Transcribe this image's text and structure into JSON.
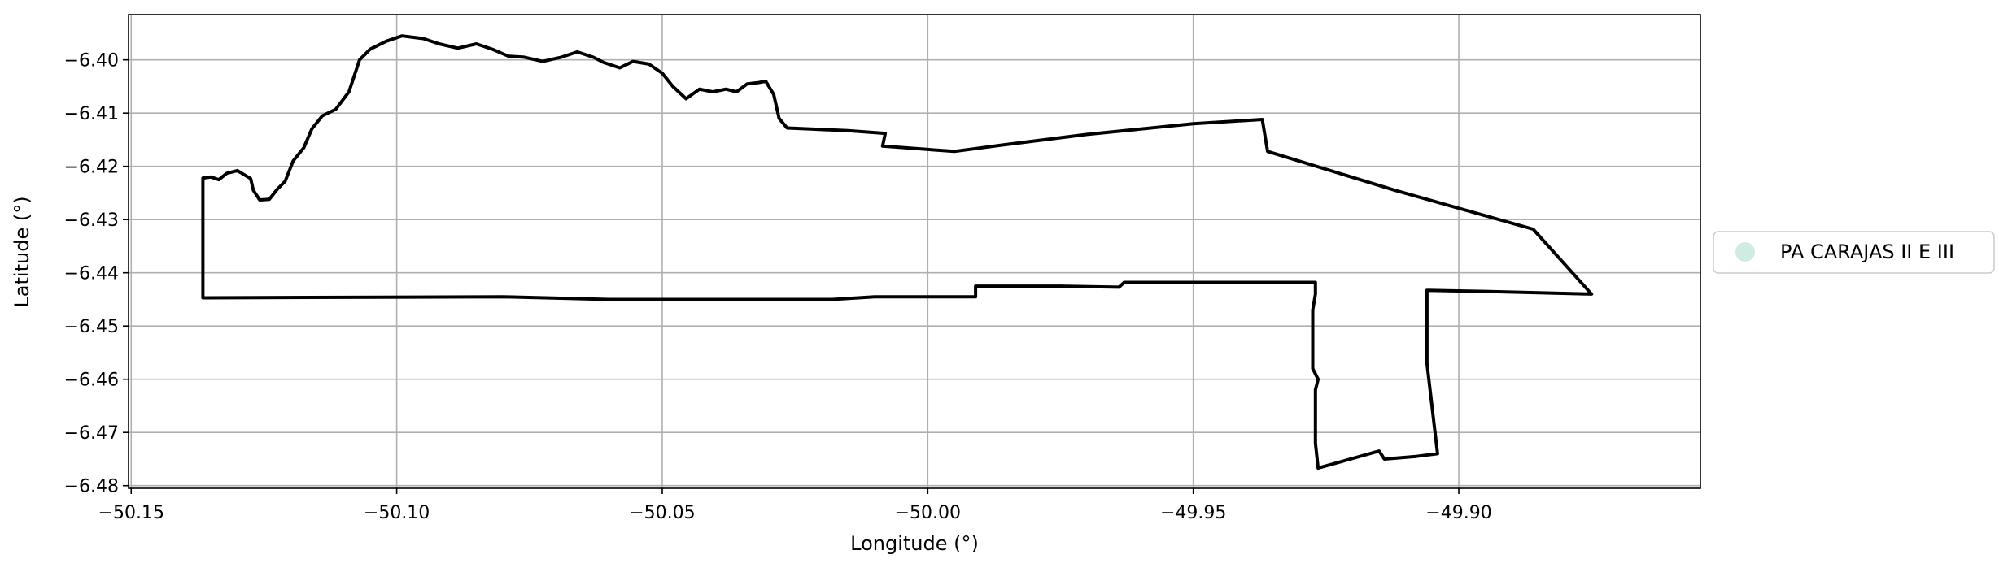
{
  "chart_data": {
    "type": "map",
    "xlabel": "Longitude (°)",
    "ylabel": "Latitude (°)",
    "xlim": [
      -50.1505,
      -49.8545
    ],
    "ylim": [
      -6.4805,
      -6.3915
    ],
    "grid": true,
    "x_ticks": [
      -50.15,
      -50.1,
      -50.05,
      -50.0,
      -49.95,
      -49.9
    ],
    "x_tick_labels": [
      "−50.15",
      "−50.10",
      "−50.05",
      "−50.00",
      "−49.95",
      "−49.90"
    ],
    "y_ticks": [
      -6.4,
      -6.41,
      -6.42,
      -6.43,
      -6.44,
      -6.45,
      -6.46,
      -6.47,
      -6.48
    ],
    "y_tick_labels": [
      "−6.40",
      "−6.41",
      "−6.42",
      "−6.43",
      "−6.44",
      "−6.45",
      "−6.46",
      "−6.47",
      "−6.48"
    ],
    "legend": {
      "placement": "right",
      "entries": [
        {
          "label": "PA CARAJAS II E III",
          "color": "#d0ece0"
        }
      ]
    },
    "series": [
      {
        "name": "PA CARAJAS II E III",
        "line_color": "#000000",
        "outline": [
          [
            -50.1365,
            -6.4447
          ],
          [
            -50.1365,
            -6.4222
          ],
          [
            -50.135,
            -6.422
          ],
          [
            -50.1335,
            -6.4225
          ],
          [
            -50.132,
            -6.4213
          ],
          [
            -50.13,
            -6.4208
          ],
          [
            -50.1275,
            -6.4223
          ],
          [
            -50.127,
            -6.4245
          ],
          [
            -50.1258,
            -6.4263
          ],
          [
            -50.124,
            -6.4262
          ],
          [
            -50.1225,
            -6.4243
          ],
          [
            -50.121,
            -6.4228
          ],
          [
            -50.1195,
            -6.419
          ],
          [
            -50.1175,
            -6.4165
          ],
          [
            -50.116,
            -6.413
          ],
          [
            -50.114,
            -6.4105
          ],
          [
            -50.1115,
            -6.4093
          ],
          [
            -50.109,
            -6.406
          ],
          [
            -50.107,
            -6.4
          ],
          [
            -50.105,
            -6.398
          ],
          [
            -50.102,
            -6.3965
          ],
          [
            -50.099,
            -6.3955
          ],
          [
            -50.095,
            -6.396
          ],
          [
            -50.092,
            -6.397
          ],
          [
            -50.0885,
            -6.3978
          ],
          [
            -50.085,
            -6.397
          ],
          [
            -50.082,
            -6.398
          ],
          [
            -50.079,
            -6.3993
          ],
          [
            -50.076,
            -6.3995
          ],
          [
            -50.0725,
            -6.4003
          ],
          [
            -50.069,
            -6.3995
          ],
          [
            -50.066,
            -6.3985
          ],
          [
            -50.063,
            -6.3995
          ],
          [
            -50.061,
            -6.4005
          ],
          [
            -50.058,
            -6.4015
          ],
          [
            -50.0555,
            -6.4003
          ],
          [
            -50.0525,
            -6.4008
          ],
          [
            -50.05,
            -6.4025
          ],
          [
            -50.048,
            -6.405
          ],
          [
            -50.0455,
            -6.4073
          ],
          [
            -50.043,
            -6.4055
          ],
          [
            -50.0405,
            -6.406
          ],
          [
            -50.038,
            -6.4055
          ],
          [
            -50.036,
            -6.406
          ],
          [
            -50.034,
            -6.4045
          ],
          [
            -50.032,
            -6.4043
          ],
          [
            -50.0305,
            -6.404
          ],
          [
            -50.029,
            -6.4065
          ],
          [
            -50.028,
            -6.411
          ],
          [
            -50.0265,
            -6.4128
          ],
          [
            -50.022,
            -6.413
          ],
          [
            -50.015,
            -6.4133
          ],
          [
            -50.008,
            -6.4138
          ],
          [
            -50.0085,
            -6.4162
          ],
          [
            -49.995,
            -6.4172
          ],
          [
            -49.986,
            -6.416
          ],
          [
            -49.97,
            -6.414
          ],
          [
            -49.95,
            -6.412
          ],
          [
            -49.937,
            -6.4112
          ],
          [
            -49.936,
            -6.4172
          ],
          [
            -49.912,
            -6.4245
          ],
          [
            -49.886,
            -6.4318
          ],
          [
            -49.875,
            -6.444
          ],
          [
            -49.895,
            -6.4435
          ],
          [
            -49.906,
            -6.4433
          ],
          [
            -49.906,
            -6.457
          ],
          [
            -49.904,
            -6.474
          ],
          [
            -49.908,
            -6.4745
          ],
          [
            -49.914,
            -6.475
          ],
          [
            -49.915,
            -6.4735
          ],
          [
            -49.9265,
            -6.4767
          ],
          [
            -49.927,
            -6.472
          ],
          [
            -49.927,
            -6.462
          ],
          [
            -49.9265,
            -6.46
          ],
          [
            -49.9275,
            -6.458
          ],
          [
            -49.9275,
            -6.447
          ],
          [
            -49.927,
            -6.444
          ],
          [
            -49.927,
            -6.4418
          ],
          [
            -49.937,
            -6.4418
          ],
          [
            -49.95,
            -6.4418
          ],
          [
            -49.963,
            -6.4418
          ],
          [
            -49.964,
            -6.4427
          ],
          [
            -49.975,
            -6.4425
          ],
          [
            -49.991,
            -6.4425
          ],
          [
            -49.991,
            -6.4445
          ],
          [
            -50.0,
            -6.4445
          ],
          [
            -50.01,
            -6.4445
          ],
          [
            -50.018,
            -6.445
          ],
          [
            -50.06,
            -6.445
          ],
          [
            -50.08,
            -6.4445
          ],
          [
            -50.1365,
            -6.4447
          ]
        ]
      }
    ]
  }
}
